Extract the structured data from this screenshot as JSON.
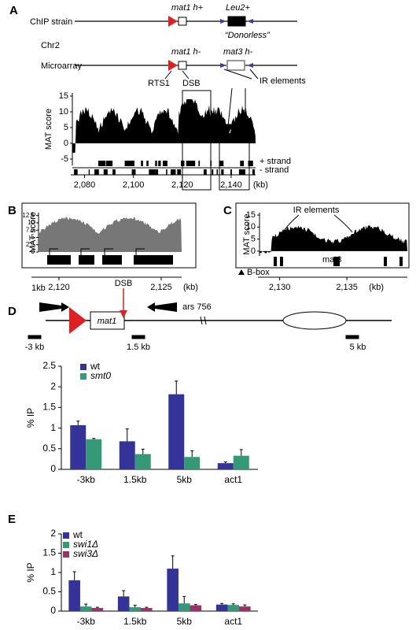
{
  "panel_a": {
    "label": "A",
    "chip_strain": "ChIP strain",
    "chip_mat1": "mat1 h+",
    "leu2": "Leu2+",
    "donorless": "“Donorless”",
    "chr": "Chr2",
    "microarray": "Microarray",
    "array_mat1": "mat1 h-",
    "mat3": "mat3 h-",
    "rts1": "RTS1",
    "dsb": "DSB",
    "ir_elements": "IR elements",
    "y_label": "MAT score",
    "ylim": [
      -7,
      16
    ],
    "yticks": [
      -5,
      0,
      5,
      10,
      15
    ],
    "plus_strand": "+ strand",
    "minus_strand": "- strand",
    "xlim": [
      2075,
      2150
    ],
    "xticks": [
      {
        "value": 2080,
        "label": "2,080"
      },
      {
        "value": 2100,
        "label": "2,100"
      },
      {
        "value": 2120,
        "label": "2,120"
      },
      {
        "value": 2140,
        "label": "2,140"
      }
    ],
    "x_unit": "(kb)"
  },
  "panel_b": {
    "label": "B",
    "y_label": "MAT score",
    "ylim": [
      0,
      13.5
    ],
    "yticks": [
      0,
      2.5,
      5,
      7.5,
      10,
      12.5
    ],
    "scale_bar": "1kb",
    "xlim": [
      2119,
      2126
    ],
    "xticks": [
      {
        "value": 2120,
        "label": "2,120"
      },
      {
        "value": 2125,
        "label": "2,125"
      }
    ],
    "x_unit": "(kb)"
  },
  "panel_c": {
    "label": "C",
    "y_label": "MAT score",
    "ir_elements": "IR elements",
    "gene": "mat3",
    "legend": "B-box",
    "ylim": [
      -2,
      16
    ],
    "yticks": [
      0,
      5,
      10,
      15
    ],
    "xlim": [
      2128.5,
      2139.5
    ],
    "xticks": [
      {
        "value": 2130,
        "label": "2,130"
      },
      {
        "value": 2135,
        "label": "2,135"
      }
    ],
    "x_unit": "(kb)"
  },
  "panel_d_map": {
    "label": "D",
    "dsb": "DSB",
    "gene": "mat1",
    "ars": "ars 756",
    "probes": [
      "-3 kb",
      "1.5 kb",
      "5 kb"
    ]
  },
  "chart_data": [
    {
      "type": "bar",
      "y_label": "% IP",
      "categories": [
        "-3kb",
        "1.5kb",
        "5kb",
        "act1"
      ],
      "ylim": [
        0,
        2.5
      ],
      "yticks": [
        0,
        0.5,
        1,
        1.5,
        2,
        2.5
      ],
      "series": [
        {
          "name": "wt",
          "color": "#333399",
          "values": [
            1.07,
            0.68,
            1.82,
            0.15
          ],
          "errors": [
            0.1,
            0.3,
            0.32,
            0.03
          ]
        },
        {
          "name": "smt0",
          "color": "#339977",
          "values": [
            0.73,
            0.37,
            0.3,
            0.33
          ],
          "errors": [
            0.02,
            0.12,
            0.15,
            0.15
          ]
        }
      ]
    },
    {
      "type": "bar",
      "panel_label": "E",
      "y_label": "% IP",
      "categories": [
        "-3kb",
        "1.5kb",
        "5kb",
        "act1"
      ],
      "ylim": [
        0,
        2
      ],
      "yticks": [
        0,
        0.5,
        1,
        1.5,
        2
      ],
      "series": [
        {
          "name": "wt",
          "color": "#333399",
          "values": [
            0.8,
            0.38,
            1.1,
            0.17
          ],
          "errors": [
            0.22,
            0.15,
            0.33,
            0.03
          ]
        },
        {
          "name": "swi1Δ",
          "color": "#339977",
          "values": [
            0.12,
            0.1,
            0.2,
            0.16
          ],
          "errors": [
            0.06,
            0.05,
            0.18,
            0.03
          ]
        },
        {
          "name": "swi3Δ",
          "color": "#993366",
          "values": [
            0.08,
            0.08,
            0.15,
            0.12
          ],
          "errors": [
            0.02,
            0.02,
            0.02,
            0.04
          ]
        }
      ]
    }
  ]
}
